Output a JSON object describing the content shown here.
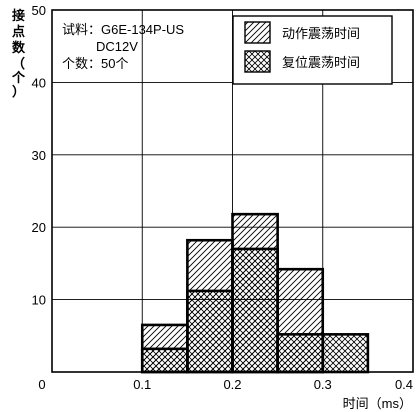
{
  "chart_data": {
    "type": "bar",
    "title": "",
    "xlabel": "时间（ms）",
    "ylabel": "接点数（个）",
    "xlim": [
      0,
      0.4
    ],
    "ylim": [
      0,
      50
    ],
    "xticks": [
      "0",
      "0.1",
      "0.2",
      "0.3",
      "0.4"
    ],
    "yticks": [
      "10",
      "20",
      "30",
      "40",
      "50"
    ],
    "grid": true,
    "legend_position": "top-right",
    "bin_edges": [
      0.1,
      0.15,
      0.2,
      0.25,
      0.3,
      0.35
    ],
    "series": [
      {
        "name": "动作震荡时间",
        "pattern": "forward-hatch",
        "values": [
          6.5,
          18.2,
          21.8,
          14.2,
          0
        ]
      },
      {
        "name": "复位震荡时间",
        "pattern": "cross-hatch",
        "values": [
          3.2,
          11.2,
          17.0,
          5.2,
          5.2
        ]
      }
    ],
    "annotations": [
      "试料：G6E-134P-US",
      "DC12V",
      "个数：50个"
    ]
  }
}
